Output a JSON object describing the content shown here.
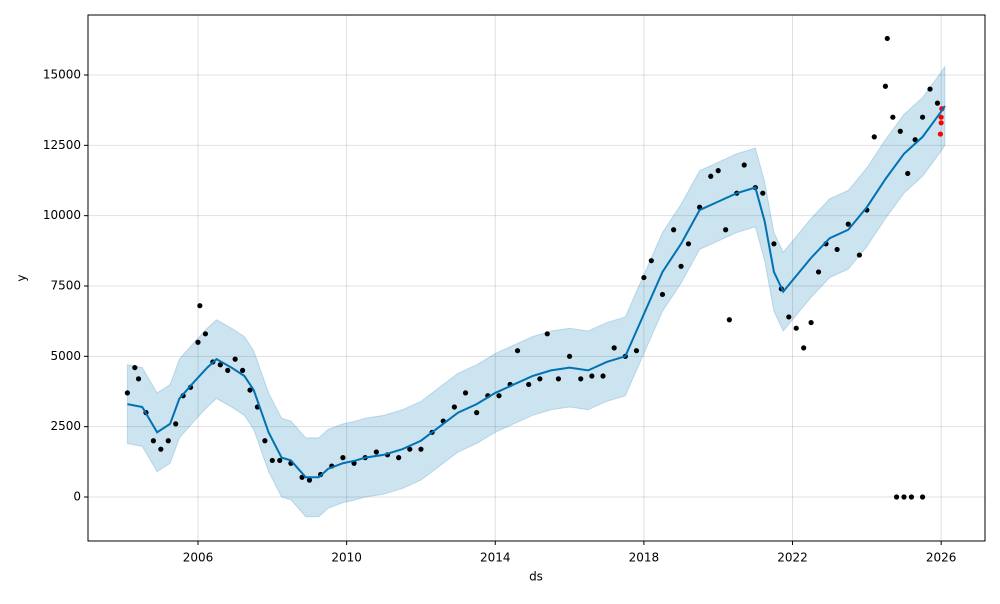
{
  "chart_data": {
    "type": "line",
    "xlabel": "ds",
    "ylabel": "y",
    "xlim": [
      2003.04,
      2027.18
    ],
    "ylim": [
      -1564,
      17133
    ],
    "xticks": [
      2006,
      2010,
      2014,
      2018,
      2022,
      2026
    ],
    "yticks": [
      0,
      2500,
      5000,
      7500,
      10000,
      12500,
      15000
    ],
    "grid": true,
    "forecast": {
      "color": "#0072b2",
      "band_color": "#0072b2",
      "x": [
        2004.1,
        2004.5,
        2004.9,
        2005.25,
        2005.5,
        2005.9,
        2006.25,
        2006.5,
        2006.9,
        2007.25,
        2007.5,
        2007.9,
        2008.25,
        2008.5,
        2008.9,
        2009.25,
        2009.5,
        2009.9,
        2010.25,
        2010.5,
        2011,
        2011.5,
        2012,
        2012.5,
        2013,
        2013.5,
        2014,
        2014.5,
        2015,
        2015.5,
        2016,
        2016.5,
        2017,
        2017.5,
        2018,
        2018.5,
        2019,
        2019.5,
        2020,
        2020.5,
        2021,
        2021.25,
        2021.5,
        2021.75,
        2022,
        2022.5,
        2023,
        2023.5,
        2024,
        2024.5,
        2025,
        2025.5,
        2026,
        2026.1
      ],
      "values": [
        3300,
        3200,
        2300,
        2600,
        3500,
        4100,
        4600,
        4900,
        4600,
        4300,
        3800,
        2300,
        1400,
        1300,
        700,
        700,
        1000,
        1200,
        1300,
        1400,
        1500,
        1700,
        2000,
        2500,
        3000,
        3300,
        3700,
        4000,
        4300,
        4500,
        4600,
        4500,
        4800,
        5000,
        6500,
        8000,
        9000,
        10200,
        10500,
        10800,
        11000,
        9800,
        8000,
        7300,
        7700,
        8500,
        9200,
        9500,
        10300,
        11300,
        12200,
        12800,
        13700,
        13900
      ],
      "lower": [
        1900,
        1800,
        900,
        1200,
        2100,
        2700,
        3200,
        3500,
        3200,
        2900,
        2400,
        900,
        0,
        -100,
        -700,
        -700,
        -400,
        -200,
        -100,
        0,
        100,
        300,
        600,
        1100,
        1600,
        1900,
        2300,
        2600,
        2900,
        3100,
        3200,
        3100,
        3400,
        3600,
        5100,
        6600,
        7600,
        8800,
        9100,
        9400,
        9600,
        8400,
        6600,
        5900,
        6300,
        7100,
        7800,
        8100,
        8900,
        9900,
        10800,
        11400,
        12300,
        12500
      ],
      "upper": [
        4700,
        4600,
        3700,
        4000,
        4900,
        5500,
        6000,
        6300,
        6000,
        5700,
        5200,
        3700,
        2800,
        2700,
        2100,
        2100,
        2400,
        2600,
        2700,
        2800,
        2900,
        3100,
        3400,
        3900,
        4400,
        4700,
        5100,
        5400,
        5700,
        5900,
        6000,
        5900,
        6200,
        6400,
        7900,
        9400,
        10400,
        11600,
        11900,
        12200,
        12400,
        11200,
        9400,
        8700,
        9100,
        9900,
        10600,
        10900,
        11700,
        12700,
        13600,
        14200,
        15100,
        15300
      ]
    },
    "points": [
      {
        "color": "#000000",
        "x": [
          2004.1,
          2004.3,
          2004.4,
          2004.6,
          2004.8,
          2005.0,
          2005.2,
          2005.4,
          2005.6,
          2005.8,
          2006.0,
          2006.05,
          2006.2,
          2006.4,
          2006.6,
          2006.8,
          2007.0,
          2007.2,
          2007.4,
          2007.6,
          2007.8,
          2008.0,
          2008.2,
          2008.5,
          2008.8,
          2009.0,
          2009.3,
          2009.6,
          2009.9,
          2010.2,
          2010.5,
          2010.8,
          2011.1,
          2011.4,
          2011.7,
          2012.0,
          2012.3,
          2012.6,
          2012.9,
          2013.2,
          2013.5,
          2013.8,
          2014.1,
          2014.4,
          2014.6,
          2014.9,
          2015.2,
          2015.4,
          2015.7,
          2016.0,
          2016.3,
          2016.6,
          2016.9,
          2017.2,
          2017.5,
          2017.8,
          2018.0,
          2018.2,
          2018.5,
          2018.8,
          2019.0,
          2019.2,
          2019.5,
          2019.8,
          2020.0,
          2020.2,
          2020.3,
          2020.5,
          2020.7,
          2021.0,
          2021.2,
          2021.5,
          2021.7,
          2021.9,
          2022.1,
          2022.3,
          2022.5,
          2022.7,
          2022.9,
          2023.2,
          2023.5,
          2023.8,
          2024.0,
          2024.2,
          2024.5,
          2024.55,
          2024.7,
          2024.9,
          2025.1,
          2025.3,
          2025.5,
          2025.7,
          2025.9,
          2024.8,
          2025.0,
          2025.2,
          2025.5
        ],
        "values": [
          3700,
          4600,
          4200,
          3000,
          2000,
          1700,
          2000,
          2600,
          3600,
          3900,
          5500,
          6800,
          5800,
          4800,
          4700,
          4500,
          4900,
          4500,
          3800,
          3200,
          2000,
          1300,
          1300,
          1200,
          700,
          600,
          800,
          1100,
          1400,
          1200,
          1400,
          1600,
          1500,
          1400,
          1700,
          1700,
          2300,
          2700,
          3200,
          3700,
          3000,
          3600,
          3600,
          4000,
          5200,
          4000,
          4200,
          5800,
          4200,
          5000,
          4200,
          4300,
          4300,
          5300,
          5000,
          5200,
          7800,
          8400,
          7200,
          9500,
          8200,
          9000,
          10300,
          11400,
          11600,
          9500,
          6300,
          10800,
          11800,
          11000,
          10800,
          9000,
          7400,
          6400,
          6000,
          5300,
          6200,
          8000,
          9000,
          8800,
          9700,
          8600,
          10200,
          12800,
          14600,
          16300,
          13500,
          13000,
          11500,
          12700,
          13500,
          14500,
          14000,
          0,
          0,
          0,
          0
        ]
      },
      {
        "color": "#ff0000",
        "x": [
          2025.98,
          2026.0,
          2026.0,
          2026.02
        ],
        "values": [
          12900,
          13300,
          13500,
          13800
        ]
      }
    ]
  }
}
